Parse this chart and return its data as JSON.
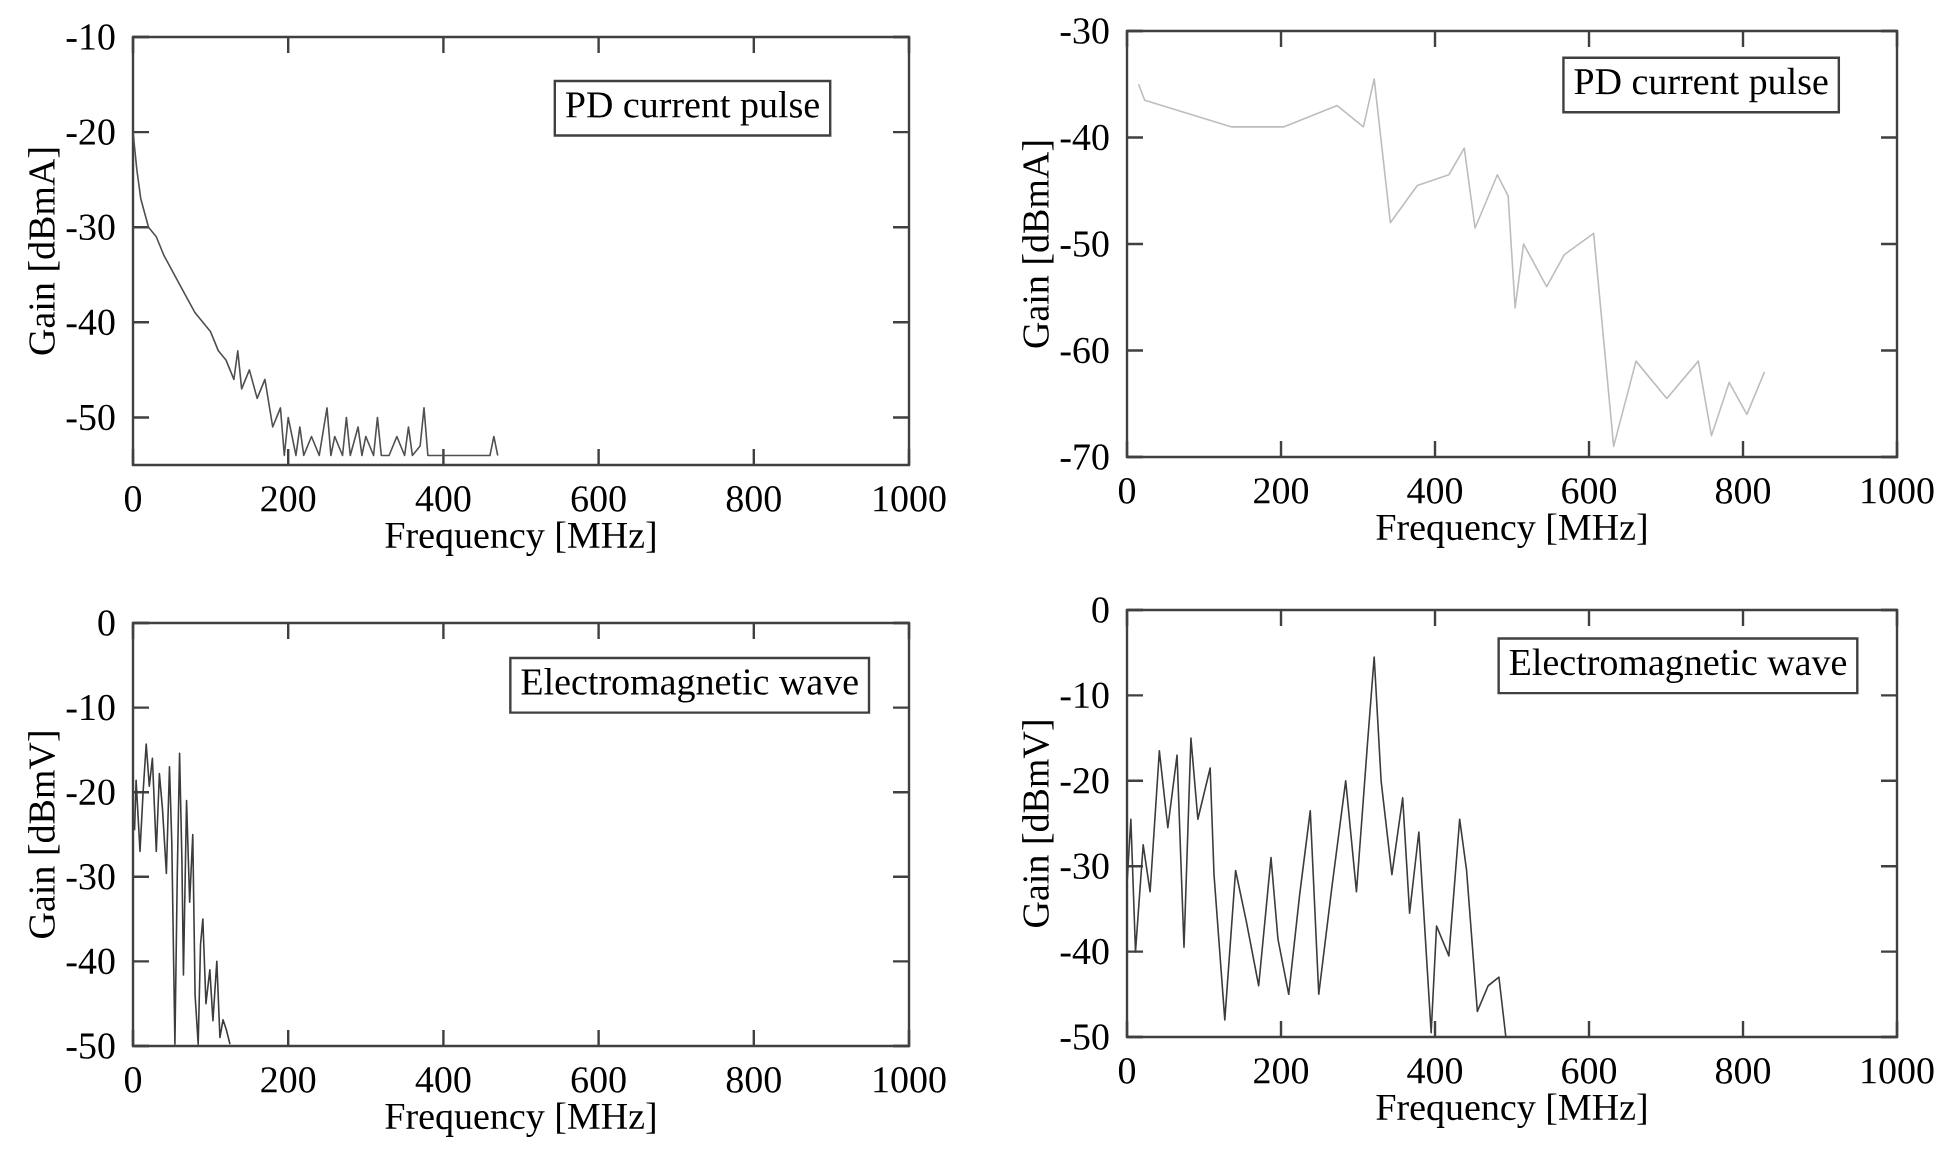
{
  "chart_data": [
    {
      "type": "line",
      "xlabel": "Frequency [MHz]",
      "ylabel": "Gain [dBmA]",
      "annotations": [
        "PD current pulse"
      ],
      "color": "#505050",
      "xlim": [
        0,
        1000
      ],
      "ylim": [
        -55,
        -10
      ],
      "xticks": [
        0,
        200,
        400,
        600,
        800,
        1000
      ],
      "yticks": [
        -10,
        -20,
        -30,
        -40,
        -50
      ],
      "x": [
        0,
        5,
        10,
        20,
        30,
        40,
        60,
        80,
        100,
        110,
        120,
        130,
        135,
        140,
        150,
        160,
        170,
        180,
        190,
        195,
        200,
        210,
        215,
        220,
        230,
        240,
        250,
        255,
        260,
        270,
        275,
        280,
        290,
        295,
        300,
        310,
        315,
        320,
        330,
        340,
        350,
        355,
        360,
        370,
        375,
        380,
        390,
        460,
        465,
        470
      ],
      "values": [
        -20,
        -24,
        -27,
        -30,
        -31,
        -33,
        -36,
        -39,
        -41,
        -43,
        -44,
        -46,
        -43,
        -47,
        -45,
        -48,
        -46,
        -51,
        -49,
        -54,
        -50,
        -54,
        -51,
        -54,
        -52,
        -54,
        -49,
        -54,
        -52,
        -54,
        -50,
        -54,
        -51,
        -54,
        -52,
        -54,
        -50,
        -54,
        -54,
        -52,
        -54,
        -51,
        -54,
        -53,
        -49,
        -54,
        -54,
        -54,
        -52,
        -54
      ]
    },
    {
      "type": "line",
      "xlabel": "Frequency [MHz]",
      "ylabel": "Gain [dBmA]",
      "annotations": [
        "PD current pulse"
      ],
      "color": "#bdbdbd",
      "xlim": [
        0,
        1000
      ],
      "ylim": [
        -70,
        -30
      ],
      "xticks": [
        0,
        200,
        400,
        600,
        800,
        1000
      ],
      "yticks": [
        -30,
        -40,
        -50,
        -60,
        -70
      ],
      "x": [
        15,
        23,
        135,
        204,
        273,
        307,
        321,
        342,
        377,
        418,
        438,
        452,
        481,
        495,
        504,
        515,
        545,
        568,
        606,
        632,
        661,
        701,
        742,
        759,
        782,
        805,
        828
      ],
      "values": [
        -35,
        -36.5,
        -39,
        -39,
        -37,
        -39,
        -34.5,
        -48,
        -44.5,
        -43.5,
        -41,
        -48.5,
        -43.5,
        -45.5,
        -56,
        -50,
        -54,
        -51,
        -49,
        -69,
        -61,
        -64.5,
        -61,
        -68,
        -63,
        -66,
        -62
      ]
    },
    {
      "type": "line",
      "xlabel": "Frequency [MHz]",
      "ylabel": "Gain [dBmV]",
      "annotations": [
        "Electromagnetic wave"
      ],
      "color": "#3c3c3c",
      "xlim": [
        0,
        1000
      ],
      "ylim": [
        -50,
        0
      ],
      "xticks": [
        0,
        200,
        400,
        600,
        800,
        1000
      ],
      "yticks": [
        0,
        -10,
        -20,
        -30,
        -40,
        -50
      ],
      "x": [
        2,
        4,
        9,
        13,
        17,
        21,
        25,
        30,
        34,
        38,
        43,
        47,
        50,
        54,
        57,
        60,
        63,
        65,
        69,
        73,
        77,
        80,
        84,
        87,
        90,
        94,
        99,
        103,
        108,
        112,
        116,
        120,
        125
      ],
      "values": [
        -24.5,
        -18.6,
        -27,
        -20,
        -14.3,
        -19.3,
        -16,
        -27,
        -17.8,
        -22,
        -29.6,
        -17,
        -26,
        -49.8,
        -30,
        -15.4,
        -28,
        -41.6,
        -21,
        -33,
        -25,
        -44,
        -49.8,
        -38,
        -35,
        -45,
        -41,
        -47,
        -40,
        -49,
        -46.9,
        -48,
        -49.8
      ]
    },
    {
      "type": "line",
      "xlabel": "Frequency [MHz]",
      "ylabel": "Gain [dBmV]",
      "annotations": [
        "Electromagnetic wave"
      ],
      "color": "#3c3c3c",
      "xlim": [
        0,
        1000
      ],
      "ylim": [
        -50,
        0
      ],
      "xticks": [
        0,
        200,
        400,
        600,
        800,
        1000
      ],
      "yticks": [
        0,
        -10,
        -20,
        -30,
        -40,
        -50
      ],
      "x": [
        0,
        5,
        11,
        21,
        30,
        42,
        53,
        65,
        74,
        83,
        92,
        108,
        113,
        127,
        141,
        155,
        171,
        187,
        196,
        210,
        224,
        238,
        249,
        266,
        284,
        298,
        312,
        321,
        330,
        344,
        358,
        367,
        379,
        395,
        402,
        418,
        432,
        441,
        455,
        469,
        483,
        492
      ],
      "values": [
        -32,
        -24.5,
        -40,
        -27.5,
        -33,
        -16.5,
        -25.5,
        -17,
        -39.5,
        -15,
        -24.5,
        -18.5,
        -31,
        -48,
        -30.5,
        -36.5,
        -44,
        -29,
        -38.5,
        -45,
        -33.5,
        -23.5,
        -45,
        -32.5,
        -20,
        -33,
        -16,
        -5.5,
        -20,
        -31,
        -22,
        -35.5,
        -26,
        -49.5,
        -37,
        -40.5,
        -24.5,
        -30.5,
        -47,
        -44,
        -43,
        -50
      ]
    }
  ]
}
